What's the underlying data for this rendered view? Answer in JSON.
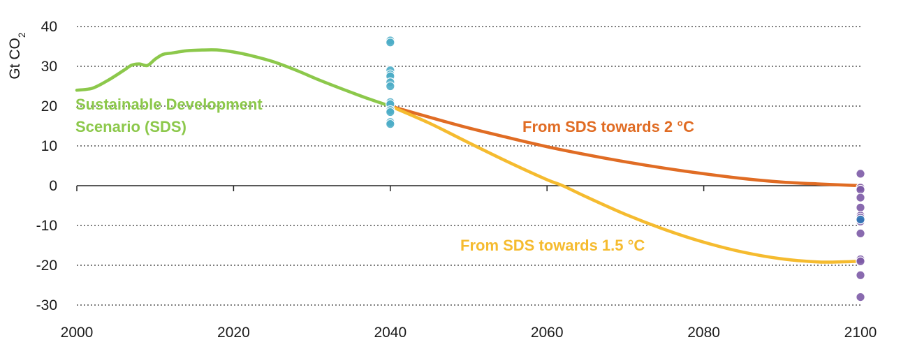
{
  "chart_data": {
    "type": "line",
    "ylabel": "Gt CO",
    "ylabel_sub": "2",
    "xlim": [
      2000,
      2100
    ],
    "ylim": [
      -30,
      40
    ],
    "xticks": [
      2000,
      2020,
      2040,
      2060,
      2080,
      2100
    ],
    "yticks": [
      40,
      30,
      20,
      10,
      0,
      -10,
      -20,
      -30
    ],
    "grid": "horizontal-dotted",
    "colors": {
      "sds": "#8cc84b",
      "two_deg": "#e06c24",
      "one_five_deg": "#f5bb2f",
      "dots_2040": "#4bacc6",
      "dots_2100": "#7c5aa6",
      "dots_2100_highlight": "#2e75b6"
    },
    "series": [
      {
        "name": "Sustainable Development Scenario (SDS)",
        "label_lines": [
          "Sustainable Development",
          "Scenario (SDS)"
        ],
        "color_key": "sds",
        "points": [
          [
            2000,
            24
          ],
          [
            2002,
            24.5
          ],
          [
            2004,
            26.5
          ],
          [
            2006,
            29
          ],
          [
            2007,
            30.3
          ],
          [
            2008,
            30.6
          ],
          [
            2009,
            30.2
          ],
          [
            2010,
            31.8
          ],
          [
            2011,
            33
          ],
          [
            2012,
            33.3
          ],
          [
            2014,
            33.9
          ],
          [
            2016,
            34.1
          ],
          [
            2018,
            34.1
          ],
          [
            2020,
            33.6
          ],
          [
            2022,
            32.8
          ],
          [
            2025,
            31.2
          ],
          [
            2028,
            29
          ],
          [
            2031,
            26.5
          ],
          [
            2034,
            24.2
          ],
          [
            2037,
            22
          ],
          [
            2040,
            20
          ]
        ]
      },
      {
        "name": "From SDS towards 2 °C",
        "label_lines": [
          "From SDS towards 2 °C"
        ],
        "color_key": "two_deg",
        "points": [
          [
            2040,
            20
          ],
          [
            2045,
            17.2
          ],
          [
            2050,
            14.5
          ],
          [
            2055,
            12.1
          ],
          [
            2060,
            9.8
          ],
          [
            2065,
            7.8
          ],
          [
            2070,
            6
          ],
          [
            2075,
            4.4
          ],
          [
            2080,
            3
          ],
          [
            2085,
            1.8
          ],
          [
            2090,
            0.9
          ],
          [
            2095,
            0.4
          ],
          [
            2100,
            0
          ]
        ]
      },
      {
        "name": "From SDS towards 1.5 °C",
        "label_lines": [
          "From SDS towards 1.5 °C"
        ],
        "color_key": "one_five_deg",
        "points": [
          [
            2040,
            20
          ],
          [
            2045,
            15.7
          ],
          [
            2050,
            10.8
          ],
          [
            2055,
            6
          ],
          [
            2060,
            1.5
          ],
          [
            2062,
            0
          ],
          [
            2065,
            -2.8
          ],
          [
            2070,
            -7.2
          ],
          [
            2075,
            -11
          ],
          [
            2080,
            -14.2
          ],
          [
            2085,
            -16.7
          ],
          [
            2090,
            -18.4
          ],
          [
            2095,
            -19.2
          ],
          [
            2100,
            -19
          ]
        ]
      }
    ],
    "scatter": [
      {
        "name": "2040 points",
        "color_key": "dots_2040",
        "x": 2040,
        "y": [
          36.5,
          36,
          29,
          28,
          27.5,
          26,
          25,
          21,
          20.5,
          19,
          18.5,
          16,
          15.5
        ]
      },
      {
        "name": "2100 points",
        "color_key": "dots_2100",
        "x": 2100,
        "y": [
          3,
          -0.5,
          -1,
          -3,
          -5.5,
          -7.5,
          -8,
          -9,
          -12,
          -18.5,
          -19,
          -22.5,
          -28
        ]
      },
      {
        "name": "2100 highlighted point",
        "color_key": "dots_2100_highlight",
        "x": 2100,
        "y": [
          -8.5
        ]
      }
    ]
  }
}
